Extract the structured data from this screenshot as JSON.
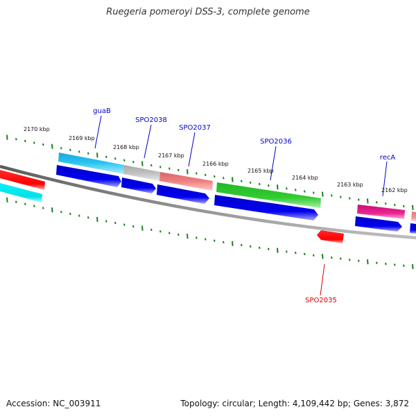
{
  "title": "Ruegeria pomeroyi DSS-3, complete genome",
  "footer": {
    "accession": "Accession: NC_003911",
    "summary": "Topology: circular; Length: 4,109,442 bp; Genes: 3,872"
  },
  "ruler": {
    "tick_labels": [
      "2170 kbp",
      "2169 kbp",
      "2168 kbp",
      "2167 kbp",
      "2166 kbp",
      "2165 kbp",
      "2164 kbp",
      "2163 kbp",
      "2162 kbp"
    ],
    "tick_color": "#1a7f1a"
  },
  "backbone_color": "#808080",
  "strand_colors": {
    "forward_red": "#ff0000",
    "forward_cyan": "#00e5ee",
    "forward_blue": "#4fc3f7",
    "grey": "#c0c0c0",
    "salmon": "#f08080",
    "green": "#33cc33",
    "magenta": "#e0208a",
    "cds_blue": "#0000ee"
  },
  "gene_labels": {
    "guaB": "guaB",
    "spo2038": "SPO2038",
    "spo2037": "SPO2037",
    "spo2036": "SPO2036",
    "recA": "recA",
    "spo2035": "SPO2035"
  },
  "gene_label_colors": {
    "forward": "#0000cc",
    "reverse": "#dd0000"
  }
}
